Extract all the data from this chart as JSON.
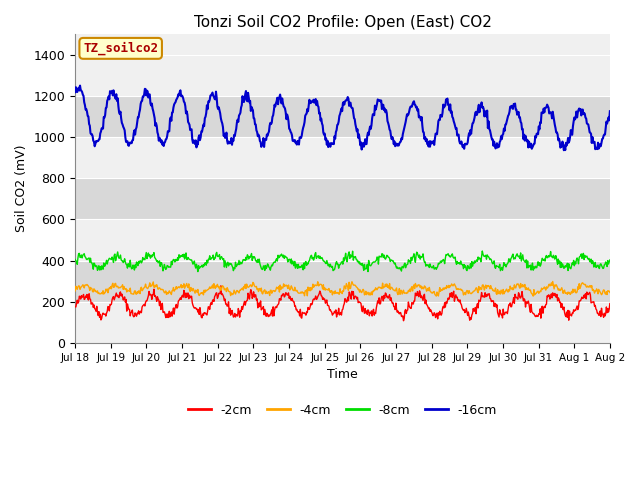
{
  "title": "Tonzi Soil CO2 Profile: Open (East) CO2",
  "xlabel": "Time",
  "ylabel": "Soil CO2 (mV)",
  "ylim": [
    0,
    1500
  ],
  "yticks": [
    0,
    200,
    400,
    600,
    800,
    1000,
    1200,
    1400
  ],
  "x_labels": [
    "Jul 18",
    "Jul 19",
    "Jul 20",
    "Jul 21",
    "Jul 22",
    "Jul 23",
    "Jul 24",
    "Jul 25",
    "Jul 26",
    "Jul 27",
    "Jul 28",
    "Jul 29",
    "Jul 30",
    "Jul 31",
    "Aug 1",
    "Aug 2"
  ],
  "legend_labels": [
    "-2cm",
    "-4cm",
    "-8cm",
    "-16cm"
  ],
  "legend_colors": [
    "#ff0000",
    "#ffa500",
    "#00dd00",
    "#0000cc"
  ],
  "box_label": "TZ_soilco2",
  "box_bg": "#ffffcc",
  "box_border": "#cc8800",
  "background_color": "#ffffff",
  "plot_bg_light": "#f0f0f0",
  "plot_bg_dark": "#d8d8d8",
  "grid_color": "#c0c0c0",
  "title_fontsize": 11,
  "n_points": 768,
  "days": 16,
  "seed": 42,
  "band_ranges": [
    [
      0,
      200
    ],
    [
      200,
      400
    ],
    [
      400,
      600
    ],
    [
      600,
      800
    ],
    [
      800,
      1000
    ],
    [
      1000,
      1200
    ],
    [
      1200,
      1400
    ]
  ]
}
